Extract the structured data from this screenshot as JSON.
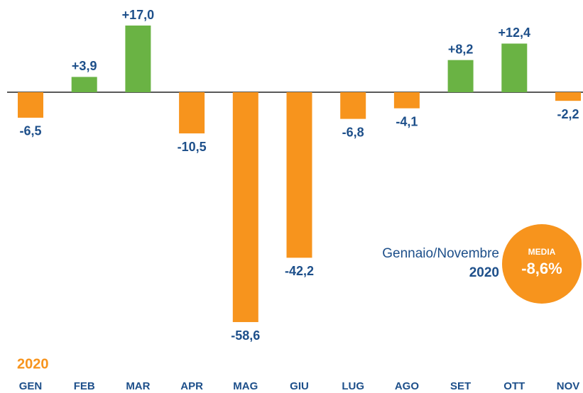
{
  "chart_data": {
    "type": "bar",
    "categories": [
      "GEN",
      "FEB",
      "MAR",
      "APR",
      "MAG",
      "GIU",
      "LUG",
      "AGO",
      "SET",
      "OTT",
      "NOV"
    ],
    "values": [
      -6.5,
      3.9,
      17.0,
      -10.5,
      -58.6,
      -42.2,
      -6.8,
      -4.1,
      8.2,
      12.4,
      -2.2
    ],
    "value_labels": [
      "-6,5",
      "+3,9",
      "+17,0",
      "-10,5",
      "-58,6",
      "-42,2",
      "-6,8",
      "-4,1",
      "+8,2",
      "+12,4",
      "-2,2"
    ],
    "positive_color": "#6ab344",
    "negative_color": "#f7941d",
    "year_label": "2020",
    "annotation": {
      "period": "Gennaio/Novembre",
      "year": "2020"
    },
    "badge": {
      "title": "MEDIA",
      "value": "-8,6%"
    }
  }
}
